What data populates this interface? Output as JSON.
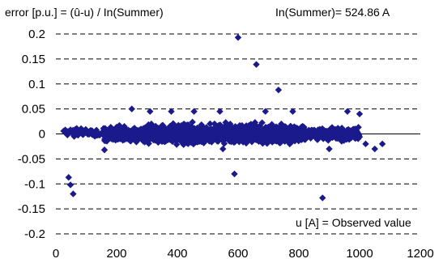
{
  "chart_data": {
    "type": "scatter",
    "ylabel": "error [p.u.] = (û-u) / In(Summer)",
    "annotation_top": "In(Summer)= 524.86 A",
    "annotation_bottom": "u [A] = Observed value",
    "xlim": [
      0,
      1200
    ],
    "ylim": [
      -0.2,
      0.2
    ],
    "xticks": [
      "0",
      "200",
      "400",
      "600",
      "800",
      "1000",
      "1200"
    ],
    "yticks": [
      "0.2",
      "0.15",
      "0.1",
      "0.05",
      "0",
      "-0.05",
      "-0.1",
      "-0.15",
      "-0.2"
    ],
    "grid": "horizontal dashed",
    "marker_color": "#1a1a8c",
    "marker": "diamond",
    "outliers": [
      {
        "x": 600,
        "y": 0.193
      },
      {
        "x": 660,
        "y": 0.139
      },
      {
        "x": 733,
        "y": 0.088
      },
      {
        "x": 250,
        "y": 0.05
      },
      {
        "x": 380,
        "y": 0.045
      },
      {
        "x": 310,
        "y": 0.045
      },
      {
        "x": 455,
        "y": 0.045
      },
      {
        "x": 540,
        "y": 0.045
      },
      {
        "x": 690,
        "y": 0.045
      },
      {
        "x": 780,
        "y": 0.045
      },
      {
        "x": 960,
        "y": 0.045
      },
      {
        "x": 1000,
        "y": 0.04
      },
      {
        "x": 1020,
        "y": -0.02
      },
      {
        "x": 1050,
        "y": -0.03
      },
      {
        "x": 1075,
        "y": -0.02
      },
      {
        "x": 42,
        "y": -0.087
      },
      {
        "x": 48,
        "y": -0.102
      },
      {
        "x": 57,
        "y": -0.12
      },
      {
        "x": 588,
        "y": -0.08
      },
      {
        "x": 878,
        "y": -0.128
      },
      {
        "x": 160,
        "y": -0.032
      },
      {
        "x": 550,
        "y": -0.03
      },
      {
        "x": 900,
        "y": -0.03
      }
    ],
    "clusters": [
      {
        "x_from": 25,
        "x_to": 160,
        "y_center": 0.003,
        "y_spread": 0.012,
        "count": 90
      },
      {
        "x_from": 160,
        "x_to": 300,
        "y_center": 0.0,
        "y_spread": 0.022,
        "count": 320
      },
      {
        "x_from": 300,
        "x_to": 820,
        "y_center": 0.0,
        "y_spread": 0.028,
        "count": 1300
      },
      {
        "x_from": 820,
        "x_to": 1000,
        "y_center": 0.0,
        "y_spread": 0.02,
        "count": 250
      }
    ]
  }
}
